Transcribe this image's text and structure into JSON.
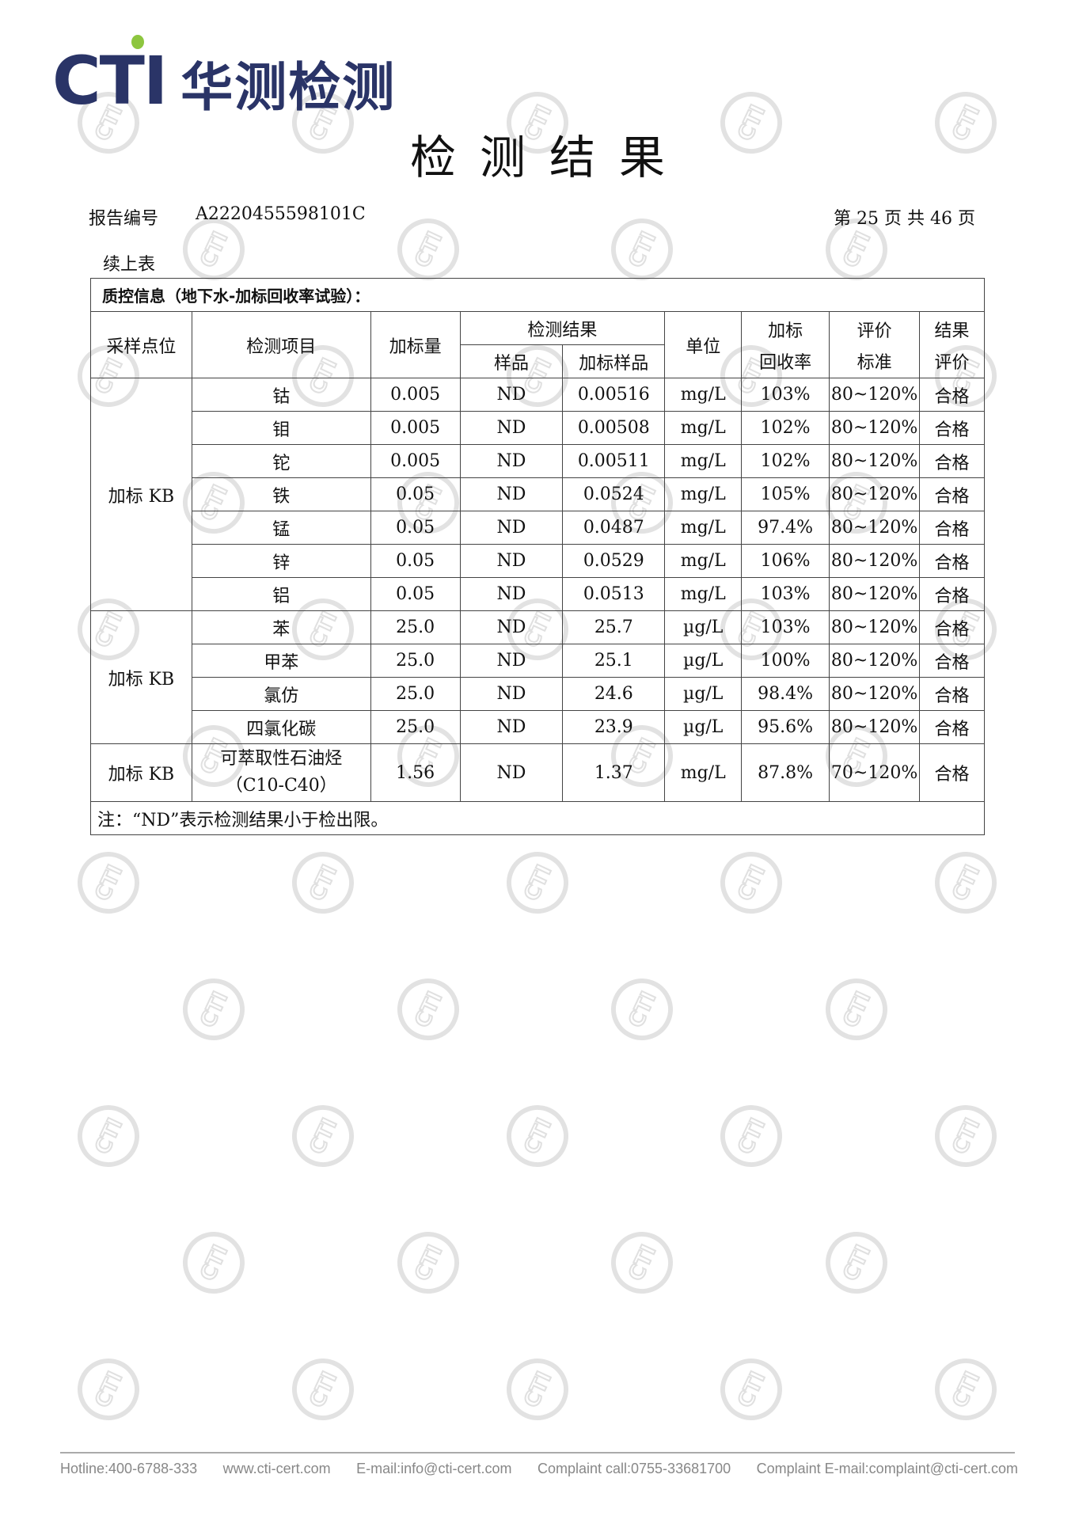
{
  "logo": {
    "text": "CTI",
    "cn": "华测检测",
    "accent": "#2a3467",
    "dot_color": "#8dc63f"
  },
  "title": "检测结果",
  "report_label": "报告编号",
  "report_no": "A2220455598101C",
  "page_info": "第 25 页 共 46 页",
  "continued": "续上表",
  "table": {
    "section_title": "质控信息（地下水-加标回收率试验）：",
    "headers": {
      "site": "采样点位",
      "item": "检测项目",
      "spike": "加标量",
      "result": "检测结果",
      "sample": "样品",
      "spiked_sample": "加标样品",
      "unit": "单位",
      "recovery_1": "加标",
      "recovery_2": "回收率",
      "std_1": "评价",
      "std_2": "标准",
      "eval_1": "结果",
      "eval_2": "评价"
    },
    "groups": [
      {
        "site": "加标 KB",
        "rows": [
          [
            "钴",
            "0.005",
            "ND",
            "0.00516",
            "mg/L",
            "103%",
            "80~120%",
            "合格"
          ],
          [
            "钼",
            "0.005",
            "ND",
            "0.00508",
            "mg/L",
            "102%",
            "80~120%",
            "合格"
          ],
          [
            "铊",
            "0.005",
            "ND",
            "0.00511",
            "mg/L",
            "102%",
            "80~120%",
            "合格"
          ],
          [
            "铁",
            "0.05",
            "ND",
            "0.0524",
            "mg/L",
            "105%",
            "80~120%",
            "合格"
          ],
          [
            "锰",
            "0.05",
            "ND",
            "0.0487",
            "mg/L",
            "97.4%",
            "80~120%",
            "合格"
          ],
          [
            "锌",
            "0.05",
            "ND",
            "0.0529",
            "mg/L",
            "106%",
            "80~120%",
            "合格"
          ],
          [
            "铝",
            "0.05",
            "ND",
            "0.0513",
            "mg/L",
            "103%",
            "80~120%",
            "合格"
          ]
        ]
      },
      {
        "site": "加标 KB",
        "rows": [
          [
            "苯",
            "25.0",
            "ND",
            "25.7",
            "µg/L",
            "103%",
            "80~120%",
            "合格"
          ],
          [
            "甲苯",
            "25.0",
            "ND",
            "25.1",
            "µg/L",
            "100%",
            "80~120%",
            "合格"
          ],
          [
            "氯仿",
            "25.0",
            "ND",
            "24.6",
            "µg/L",
            "98.4%",
            "80~120%",
            "合格"
          ],
          [
            "四氯化碳",
            "25.0",
            "ND",
            "23.9",
            "µg/L",
            "95.6%",
            "80~120%",
            "合格"
          ]
        ]
      },
      {
        "site": "加标 KB",
        "rows": [
          [
            "可萃取性石油烃（C10-C40）",
            "1.56",
            "ND",
            "1.37",
            "mg/L",
            "87.8%",
            "70~120%",
            "合格"
          ]
        ]
      }
    ],
    "last_item": {
      "line1": "可萃取性石油烃",
      "c": "（C",
      "sub1": "10",
      "dash": "-C",
      "sub2": "40",
      "close": "）"
    },
    "note": "注：“ND”表示检测结果小于检出限。"
  },
  "footer": [
    "Hotline:400-6788-333",
    "www.cti-cert.com",
    "E-mail:info@cti-cert.com",
    "Complaint call:0755-33681700",
    "Complaint E-mail:complaint@cti-cert.com"
  ]
}
